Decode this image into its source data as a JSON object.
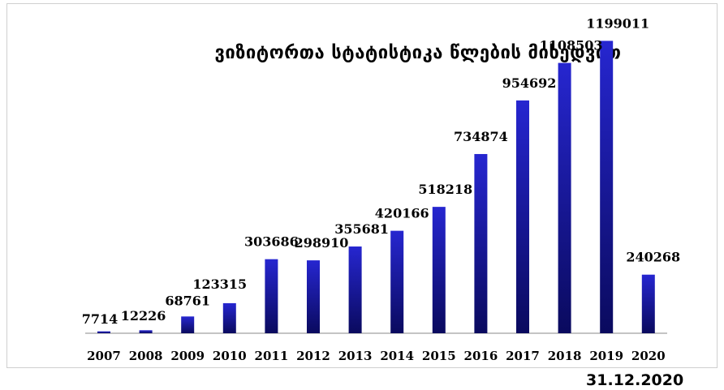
{
  "chart_data": {
    "type": "bar",
    "title": "ვიზიტორთა სტატისტიკა წლების მიხედვით",
    "xlabel": "",
    "ylabel": "",
    "categories": [
      "2007",
      "2008",
      "2009",
      "2010",
      "2011",
      "2012",
      "2013",
      "2014",
      "2015",
      "2016",
      "2017",
      "2018",
      "2019",
      "2020"
    ],
    "values": [
      7714,
      12226,
      68761,
      123315,
      303686,
      298910,
      355681,
      420166,
      518218,
      734874,
      954692,
      1108503,
      1199011,
      240268
    ],
    "data_labels": [
      "7714",
      "12226",
      "68761",
      "123315",
      "303686",
      "298910",
      "355681",
      "420166",
      "518218",
      "734874",
      "954692",
      "1108503",
      "1199011",
      "240268"
    ],
    "ylim": [
      0,
      1300000
    ],
    "grid": false,
    "legend": "none",
    "bar_color": "#1a1ab8",
    "bar_color_dark": "#0a0a5e"
  },
  "footer": {
    "date": "31.12.2020"
  }
}
